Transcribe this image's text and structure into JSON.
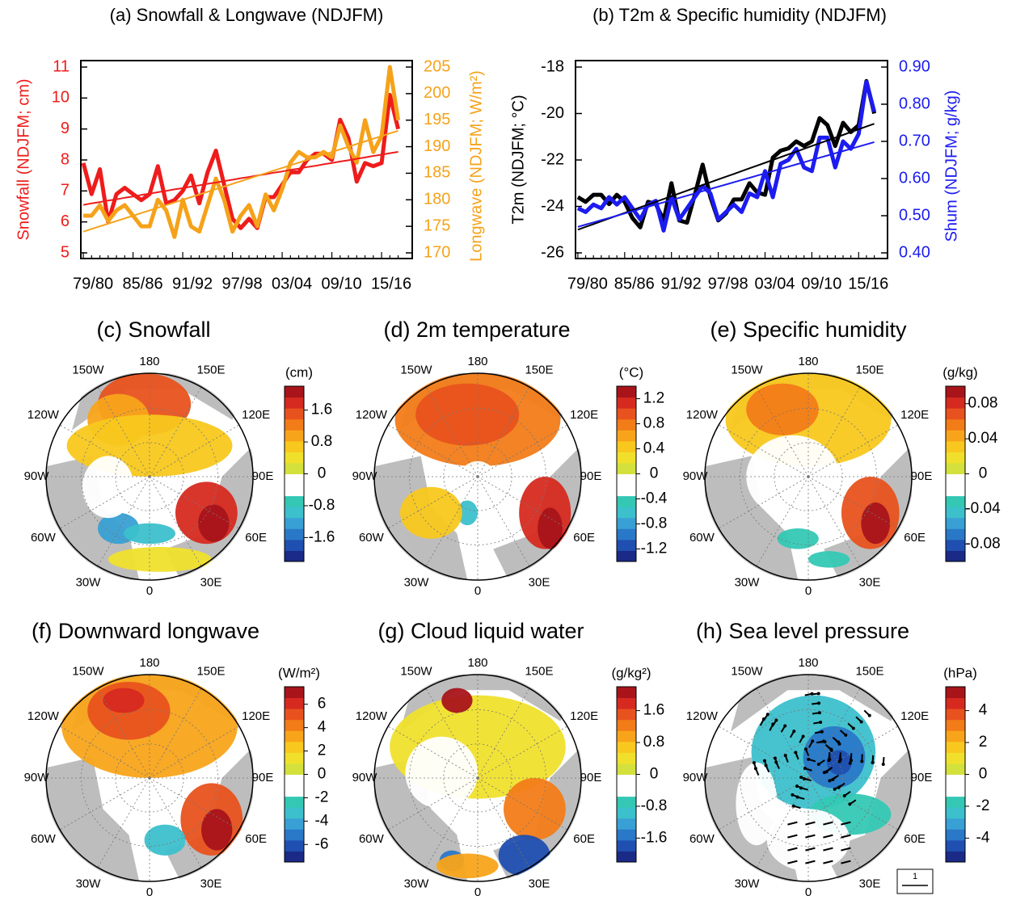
{
  "chart_data": [
    {
      "type": "line",
      "title": "(a) Snowfall & Longwave (NDJFM)",
      "ylabel": "Snowfall (NDJFM; cm)",
      "y2label": "Longwave (NDJFM; W/m²)",
      "ycolor": "#ee1c1c",
      "y2color": "#f5a21a",
      "categories": [
        "79/80",
        null,
        null,
        null,
        null,
        null,
        "85/86",
        null,
        null,
        null,
        null,
        null,
        "91/92",
        null,
        null,
        null,
        null,
        null,
        "97/98",
        null,
        null,
        null,
        null,
        null,
        "03/04",
        null,
        null,
        null,
        null,
        null,
        "09/10",
        null,
        null,
        null,
        null,
        null,
        "15/16",
        null,
        null
      ],
      "ylim": [
        5,
        11
      ],
      "yticks": [
        5,
        6,
        7,
        8,
        9,
        10,
        11
      ],
      "y2lim": [
        170,
        205
      ],
      "y2ticks": [
        170,
        175,
        180,
        185,
        190,
        195,
        200,
        205
      ],
      "series": [
        {
          "color": "#ee1c1c",
          "width": 5,
          "values": [
            7.9,
            6.9,
            7.7,
            6.0,
            6.9,
            7.1,
            6.9,
            6.7,
            6.9,
            7.8,
            6.6,
            6.7,
            7.0,
            7.5,
            6.6,
            7.6,
            8.3,
            7.2,
            6.1,
            5.8,
            6.1,
            5.8,
            6.8,
            6.8,
            7.2,
            7.6,
            7.6,
            8.0,
            8.2,
            8.2,
            8.0,
            9.3,
            8.7,
            7.3,
            7.9,
            7.8,
            7.9,
            10.1,
            9.0
          ]
        },
        {
          "color": "#f5a21a",
          "width": 5,
          "axis": "y2",
          "values": [
            177,
            177,
            179,
            176,
            178,
            179,
            177,
            175,
            175,
            180,
            178,
            173,
            180,
            175,
            174,
            179,
            184,
            180,
            174,
            177,
            179,
            175,
            181,
            178,
            182,
            187,
            189,
            188,
            188,
            189,
            188,
            194,
            190,
            187,
            195,
            189,
            192,
            205,
            195
          ]
        },
        {
          "color": "#ee1c1c",
          "width": 2,
          "values": [
            6.55,
            6.6,
            6.64,
            6.69,
            6.73,
            6.78,
            6.82,
            6.87,
            6.91,
            6.96,
            7.0,
            7.05,
            7.09,
            7.14,
            7.18,
            7.23,
            7.27,
            7.32,
            7.36,
            7.41,
            7.45,
            7.5,
            7.54,
            7.59,
            7.63,
            7.68,
            7.72,
            7.77,
            7.81,
            7.86,
            7.9,
            7.95,
            7.99,
            8.04,
            8.08,
            8.13,
            8.17,
            8.22,
            8.26
          ]
        },
        {
          "color": "#f5a21a",
          "width": 2,
          "axis": "y2",
          "values": [
            174,
            174.5,
            175,
            175.5,
            176,
            176.5,
            177,
            177.5,
            178,
            178.5,
            179,
            179.5,
            180,
            180.5,
            181,
            181.5,
            182,
            182.5,
            183,
            183.5,
            184,
            184.5,
            185,
            185.5,
            186,
            186.5,
            187,
            187.5,
            188,
            188.5,
            189,
            189.5,
            190,
            190.5,
            191,
            191.5,
            192,
            192.5,
            193
          ]
        }
      ]
    },
    {
      "type": "line",
      "title": "(b) T2m & Specific humidity (NDJFM)",
      "ylabel": "T2m (NDJFM; °C)",
      "y2label": "Shum (NDJFM; g/kg)",
      "ycolor": "#000000",
      "y2color": "#1c1cf0",
      "categories": [
        "79/80",
        null,
        null,
        null,
        null,
        null,
        "85/86",
        null,
        null,
        null,
        null,
        null,
        "91/92",
        null,
        null,
        null,
        null,
        null,
        "97/98",
        null,
        null,
        null,
        null,
        null,
        "03/04",
        null,
        null,
        null,
        null,
        null,
        "09/10",
        null,
        null,
        null,
        null,
        null,
        "15/16",
        null,
        null
      ],
      "ylim": [
        -26,
        -18
      ],
      "yticks": [
        -26,
        -24,
        -22,
        -20,
        -18
      ],
      "y2lim": [
        0.4,
        0.9
      ],
      "y2ticks": [
        {
          "value": 0.4,
          "label": "0.40"
        },
        {
          "value": 0.5,
          "label": "0.50"
        },
        {
          "value": 0.6,
          "label": "0.60"
        },
        {
          "value": 0.7,
          "label": "0.70"
        },
        {
          "value": 0.8,
          "label": "0.80"
        },
        {
          "value": 0.9,
          "label": "0.90"
        }
      ],
      "series": [
        {
          "color": "#000000",
          "width": 5,
          "values": [
            -23.6,
            -23.8,
            -23.5,
            -23.5,
            -23.9,
            -23.5,
            -23.8,
            -24.5,
            -24.9,
            -23.8,
            -23.9,
            -24.6,
            -23.0,
            -24.6,
            -24.7,
            -23.5,
            -22.2,
            -23.6,
            -24.6,
            -24.3,
            -23.7,
            -23.7,
            -23.0,
            -23.4,
            -23.5,
            -21.9,
            -21.6,
            -21.5,
            -21.2,
            -21.4,
            -21.2,
            -20.2,
            -20.5,
            -21.4,
            -20.4,
            -20.8,
            -20.5,
            -18.6,
            -20.0
          ]
        },
        {
          "color": "#1c1cf0",
          "width": 5,
          "axis": "y2",
          "values": [
            0.52,
            0.51,
            0.53,
            0.52,
            0.55,
            0.53,
            0.55,
            0.52,
            0.49,
            0.53,
            0.54,
            0.46,
            0.55,
            0.49,
            0.52,
            0.55,
            0.58,
            0.56,
            0.49,
            0.51,
            0.53,
            0.51,
            0.56,
            0.55,
            0.62,
            0.55,
            0.64,
            0.65,
            0.68,
            0.63,
            0.62,
            0.71,
            0.71,
            0.63,
            0.7,
            0.68,
            0.72,
            0.86,
            0.78
          ]
        },
        {
          "color": "#000000",
          "width": 2,
          "values": [
            -25.0,
            -24.88,
            -24.76,
            -24.64,
            -24.52,
            -24.4,
            -24.28,
            -24.16,
            -24.04,
            -23.92,
            -23.8,
            -23.68,
            -23.56,
            -23.44,
            -23.32,
            -23.2,
            -23.08,
            -22.96,
            -22.84,
            -22.72,
            -22.6,
            -22.48,
            -22.36,
            -22.24,
            -22.12,
            -22.0,
            -21.88,
            -21.76,
            -21.64,
            -21.52,
            -21.4,
            -21.28,
            -21.16,
            -21.04,
            -20.92,
            -20.8,
            -20.68,
            -20.56,
            -20.44
          ]
        },
        {
          "color": "#1c1cf0",
          "width": 2,
          "axis": "y2",
          "values": [
            0.47,
            0.476,
            0.482,
            0.488,
            0.494,
            0.5,
            0.506,
            0.512,
            0.518,
            0.524,
            0.53,
            0.536,
            0.542,
            0.548,
            0.554,
            0.56,
            0.566,
            0.572,
            0.578,
            0.584,
            0.59,
            0.596,
            0.602,
            0.608,
            0.614,
            0.62,
            0.626,
            0.632,
            0.638,
            0.644,
            0.65,
            0.656,
            0.662,
            0.668,
            0.674,
            0.68,
            0.686,
            0.692,
            0.698
          ]
        }
      ]
    }
  ],
  "longitudes": [
    "180",
    "150E",
    "120E",
    "90E",
    "60E",
    "30E",
    "0",
    "30W",
    "60W",
    "90W",
    "120W",
    "150W"
  ],
  "maps": [
    {
      "title": "(c) Snowfall",
      "unit": "(cm)",
      "clim": [
        -2.2,
        2.2
      ],
      "ticks": [
        1.6,
        0.8,
        0,
        -0.8,
        -1.6
      ]
    },
    {
      "title": "(d) 2m temperature",
      "unit": "(°C)",
      "clim": [
        -1.4,
        1.4
      ],
      "ticks": [
        1.2,
        0.8,
        0.4,
        0,
        -0.4,
        -0.8,
        -1.2
      ]
    },
    {
      "title": "(e) Specific humidity",
      "unit": "(g/kg)",
      "clim": [
        -0.1,
        0.1
      ],
      "ticks": [
        0.08,
        0.04,
        0,
        -0.04,
        -0.08
      ]
    },
    {
      "title": "(f) Downward longwave",
      "unit": "(W/m²)",
      "clim": [
        -7.5,
        7.5
      ],
      "ticks": [
        6,
        4,
        2,
        0,
        -2,
        -4,
        -6
      ]
    },
    {
      "title": "(g) Cloud liquid water",
      "unit": "(g/kg²)",
      "clim": [
        -2.2,
        2.2
      ],
      "ticks": [
        1.6,
        0.8,
        0,
        -0.8,
        -1.6
      ]
    },
    {
      "title": "(h) Sea level pressure",
      "unit": "(hPa)",
      "clim": [
        -5.5,
        5.5
      ],
      "ticks": [
        4,
        2,
        0,
        -2,
        -4
      ],
      "reference": "1"
    }
  ]
}
